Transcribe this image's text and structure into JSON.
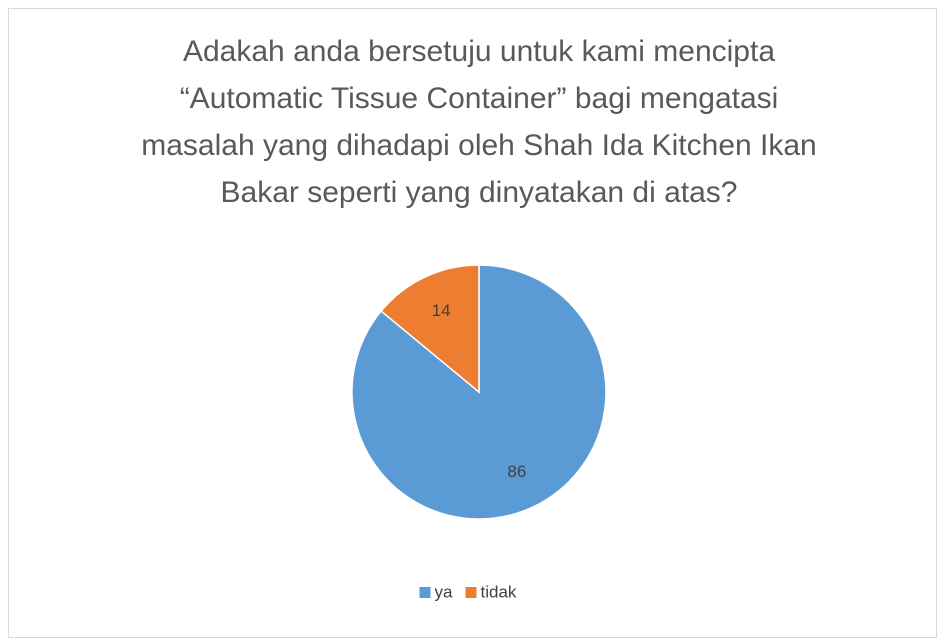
{
  "chart_data": {
    "type": "pie",
    "title": "Adakah anda bersetuju untuk kami mencipta “Automatic Tissue Container” bagi mengatasi masalah yang dihadapi oleh Shah Ida Kitchen Ikan Bakar seperti yang dinyatakan di atas?",
    "categories": [
      "ya",
      "tidak"
    ],
    "values": [
      86,
      14
    ],
    "colors": [
      "#5b9bd5",
      "#ed7d31"
    ],
    "legend": "bottom"
  }
}
